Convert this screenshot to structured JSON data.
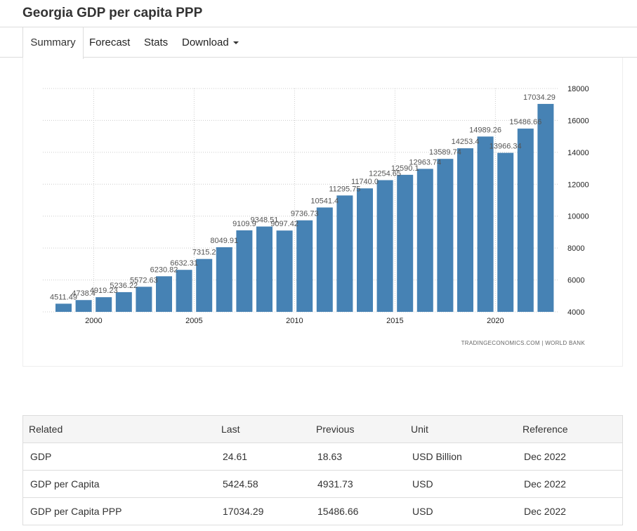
{
  "page": {
    "title": "Georgia GDP per capita PPP"
  },
  "tabs": [
    {
      "label": "Summary",
      "active": true
    },
    {
      "label": "Forecast"
    },
    {
      "label": "Stats"
    },
    {
      "label": "Download",
      "dropdown": true
    }
  ],
  "chart_data": {
    "type": "bar",
    "x": [
      1998,
      1999,
      2000,
      2001,
      2002,
      2003,
      2004,
      2005,
      2006,
      2007,
      2008,
      2009,
      2010,
      2011,
      2012,
      2013,
      2014,
      2015,
      2016,
      2017,
      2018,
      2019,
      2020,
      2021,
      2022
    ],
    "values": [
      4511.49,
      4738.4,
      4919.23,
      5236.22,
      5572.63,
      6230.82,
      6632.31,
      7315.2,
      8049.91,
      9109.9,
      9348.51,
      9097.42,
      9736.73,
      10541.4,
      11295.75,
      11740.0,
      12254.65,
      12590.1,
      12963.74,
      13589.74,
      14253.4,
      14989.26,
      13966.34,
      15486.66,
      17034.29
    ],
    "data_labels": [
      "4511.49",
      "4738.4",
      "4919.23",
      "5236.22",
      "5572.63",
      "6230.82",
      "6632.31",
      "7315.2",
      "8049.91",
      "9109.9",
      "9348.51",
      "9097.42",
      "9736.73",
      "10541.4",
      "11295.75",
      "11740.0",
      "12254.65",
      "12590.1",
      "12963.74",
      "13589.74",
      "14253.4",
      "14989.26",
      "13966.34",
      "15486.66",
      "17034.29"
    ],
    "x_ticks": [
      "2000",
      "2005",
      "2010",
      "2015",
      "2020"
    ],
    "y_ticks": [
      "4000",
      "6000",
      "8000",
      "10000",
      "12000",
      "14000",
      "16000",
      "18000"
    ],
    "ylim": [
      4000,
      18000
    ],
    "bar_color": "#4682B4",
    "grid": true,
    "source": "TRADINGECONOMICS.COM  |  WORLD BANK"
  },
  "table": {
    "headers": [
      "Related",
      "Last",
      "Previous",
      "Unit",
      "Reference"
    ],
    "rows": [
      [
        "GDP",
        "24.61",
        "18.63",
        "USD Billion",
        "Dec 2022"
      ],
      [
        "GDP per Capita",
        "5424.58",
        "4931.73",
        "USD",
        "Dec 2022"
      ],
      [
        "GDP per Capita PPP",
        "17034.29",
        "15486.66",
        "USD",
        "Dec 2022"
      ]
    ]
  }
}
